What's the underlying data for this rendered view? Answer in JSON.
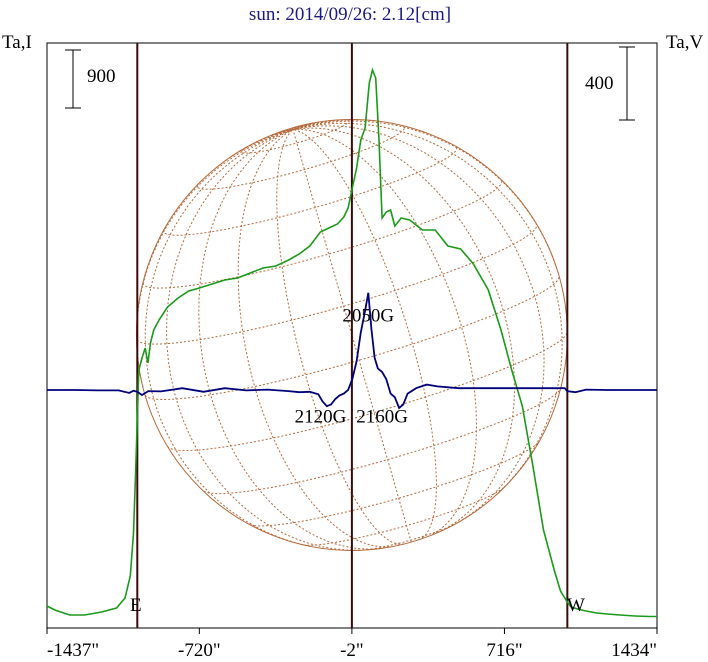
{
  "title": "sun: 2014/09/26: 2.12[cm]",
  "left_axis_label": "Ta,I",
  "right_axis_label": "Ta,V",
  "left_scale_value": "900",
  "right_scale_value": "400",
  "limb_labels": {
    "east": "E",
    "west": "W"
  },
  "colors": {
    "title": "#1a1a80",
    "intensity": "#1a9a1a",
    "polarization": "#00007a",
    "limb_lines": "#3a0a0a",
    "disk": "#b5693a",
    "frame": "#000000"
  },
  "chart_data": {
    "type": "line",
    "title": "sun: 2014/09/26: 2.12[cm]",
    "x_ticks": [
      "-1437\"",
      "-720\"",
      "-2\"",
      "716\"",
      "1434\""
    ],
    "x_tick_values": [
      -1437,
      -720,
      -2,
      716,
      1434
    ],
    "xlim": [
      -1437,
      1434
    ],
    "limb_positions": [
      -1012,
      1012
    ],
    "center_position": -2,
    "left_axis": {
      "label": "Ta,I",
      "scale_bar": 900
    },
    "right_axis": {
      "label": "Ta,V",
      "scale_bar": 400
    },
    "annotations": [
      {
        "text": "2050G",
        "x": 75,
        "y": 1.9
      },
      {
        "text": "2120G",
        "x": -150,
        "y": -0.9
      },
      {
        "text": "2160G",
        "x": 140,
        "y": -0.9
      }
    ],
    "series": [
      {
        "axis": "left",
        "x": [
          -1437,
          -1400,
          -1330,
          -1260,
          -1180,
          -1110,
          -1070,
          -1045,
          -1030,
          -1020,
          -1012,
          -1005,
          -990,
          -975,
          -962,
          -950,
          -935,
          -910,
          -870,
          -820,
          -770,
          -720,
          -660,
          -600,
          -540,
          -480,
          -420,
          -360,
          -300,
          -250,
          -200,
          -150,
          -110,
          -70,
          -40,
          -20,
          0,
          20,
          40,
          60,
          80,
          95,
          110,
          125,
          140,
          160,
          180,
          200,
          230,
          270,
          330,
          390,
          450,
          510,
          570,
          640,
          700,
          750,
          800,
          850,
          900,
          950,
          980,
          1000,
          1012,
          1030,
          1060,
          1100,
          1150,
          1200,
          1260,
          1330,
          1400,
          1434
        ],
        "y": [
          120,
          80,
          30,
          30,
          60,
          100,
          200,
          420,
          850,
          1450,
          2000,
          2480,
          2600,
          2700,
          2550,
          2750,
          2880,
          2980,
          3110,
          3200,
          3270,
          3300,
          3340,
          3380,
          3400,
          3450,
          3500,
          3520,
          3580,
          3640,
          3720,
          3860,
          3900,
          3940,
          4010,
          4100,
          4300,
          4500,
          4780,
          4900,
          5350,
          5480,
          5400,
          4800,
          4000,
          4060,
          4080,
          3920,
          4000,
          3980,
          3880,
          3880,
          3720,
          3690,
          3540,
          3280,
          2880,
          2480,
          2120,
          1520,
          880,
          480,
          270,
          200,
          160,
          110,
          90,
          70,
          50,
          40,
          30,
          20,
          15,
          15
        ],
        "name": ""
      },
      {
        "axis": "right",
        "x": [
          -1437,
          -1300,
          -1200,
          -1100,
          -1050,
          -1030,
          -1012,
          -990,
          -960,
          -900,
          -800,
          -700,
          -600,
          -500,
          -400,
          -300,
          -250,
          -200,
          -160,
          -140,
          -120,
          -100,
          -80,
          -60,
          -40,
          -20,
          0,
          20,
          40,
          60,
          75,
          90,
          105,
          120,
          140,
          160,
          180,
          200,
          220,
          240,
          260,
          300,
          350,
          400,
          500,
          600,
          700,
          800,
          900,
          1000,
          1012,
          1050,
          1100,
          1200,
          1300,
          1434
        ],
        "y": [
          0,
          0,
          -0.01,
          -0.01,
          -0.08,
          -0.02,
          -0.05,
          -0.14,
          -0.03,
          -0.04,
          0.05,
          -0.05,
          0.05,
          -0.01,
          0.01,
          -0.03,
          -0.06,
          -0.05,
          -0.12,
          -0.32,
          -0.45,
          -0.4,
          -0.25,
          -0.15,
          -0.1,
          0,
          0.3,
          0.8,
          1.6,
          2.2,
          2.7,
          1.7,
          0.9,
          0.6,
          0.5,
          0.3,
          -0.1,
          -0.2,
          -0.5,
          -0.4,
          -0.1,
          0.05,
          0.15,
          0.1,
          0.05,
          0.05,
          0.05,
          0.05,
          0.05,
          0.05,
          -0.03,
          -0.06,
          0.01,
          0,
          0,
          0
        ],
        "name": ""
      }
    ]
  }
}
